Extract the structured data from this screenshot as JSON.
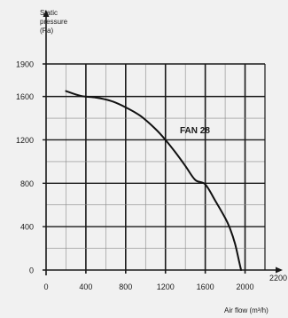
{
  "chart_data": {
    "type": "line",
    "x_ticks": [
      "0",
      "400",
      "800",
      "1200",
      "1600",
      "2000",
      "2200"
    ],
    "y_ticks": [
      "0",
      "400",
      "800",
      "1200",
      "1600",
      "1900"
    ],
    "ylabel": [
      "Static",
      "pressure",
      "(Pa)"
    ],
    "xlabel": "Air flow (m³/h)",
    "xlim": [
      0,
      2200
    ],
    "ylim": [
      0,
      1900
    ],
    "grid": true,
    "series": [
      {
        "name": "FAN 28",
        "x": [
          200,
          350,
          500,
          650,
          800,
          950,
          1100,
          1200,
          1300,
          1400,
          1500,
          1600,
          1700,
          1800,
          1850,
          1900,
          1940,
          1960
        ],
        "y": [
          1650,
          1605,
          1590,
          1560,
          1500,
          1420,
          1300,
          1200,
          1085,
          960,
          830,
          790,
          640,
          480,
          380,
          240,
          80,
          0
        ]
      }
    ]
  }
}
